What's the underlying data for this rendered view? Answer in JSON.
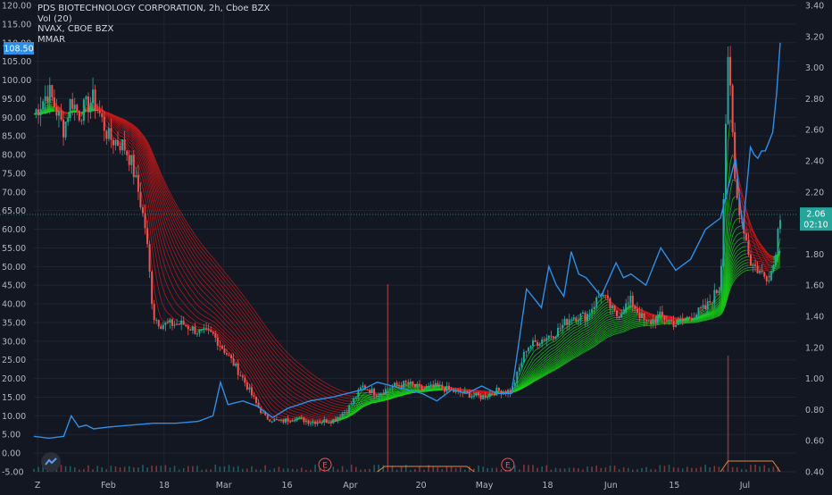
{
  "legend": {
    "title": "PDS BIOTECHNOLOGY CORPORATION, 2h, Cboe BZX",
    "volume": "Vol (20)",
    "compare": "NVAX, CBOE BZX",
    "indicator": "MMAR"
  },
  "colors": {
    "background": "#131722",
    "grid": "#1f2433",
    "nvax_line": "#2e8fe6",
    "up": "#26a69a",
    "down": "#ef5350",
    "ma_up": "#19d219",
    "ma_down": "#cc1a1a",
    "price_badge": "#26a69a",
    "nvax_badge": "#2e8fe6"
  },
  "chart_data": {
    "type": "line",
    "left_axis": {
      "ticks": [
        "120.00",
        "115.00",
        "110.00",
        "105.00",
        "100.00",
        "95.00",
        "90.00",
        "85.00",
        "80.00",
        "75.00",
        "70.00",
        "65.00",
        "60.00",
        "55.00",
        "50.00",
        "45.00",
        "40.00",
        "35.00",
        "30.00",
        "25.00",
        "20.00",
        "15.00",
        "10.00",
        "5.00",
        "0.00",
        "-5.00"
      ],
      "range": [
        -5,
        120
      ]
    },
    "right_axis": {
      "ticks": [
        "3.40",
        "3.20",
        "3.00",
        "2.80",
        "2.60",
        "2.40",
        "2.20",
        "2.00",
        "1.80",
        "1.60",
        "1.40",
        "1.20",
        "1.00",
        "0.80",
        "0.60",
        "0.40"
      ],
      "range": [
        0.4,
        3.4
      ]
    },
    "x_ticks": [
      "Z",
      "Feb",
      "18",
      "Mar",
      "16",
      "Apr",
      "20",
      "May",
      "18",
      "Jun",
      "15",
      "Jul"
    ],
    "earnings_markers": [
      "E",
      "E"
    ],
    "badges": {
      "nvax_last": "108.50",
      "pds_last": "2.06",
      "countdown": "02:10"
    },
    "series": [
      {
        "name": "NVAX, CBOE BZX",
        "axis": "left",
        "x": [
          0,
          0.02,
          0.04,
          0.05,
          0.06,
          0.07,
          0.08,
          0.1,
          0.13,
          0.16,
          0.19,
          0.22,
          0.24,
          0.25,
          0.26,
          0.28,
          0.3,
          0.32,
          0.34,
          0.37,
          0.4,
          0.42,
          0.44,
          0.46,
          0.48,
          0.5,
          0.52,
          0.54,
          0.56,
          0.58,
          0.6,
          0.62,
          0.64,
          0.66,
          0.68,
          0.69,
          0.7,
          0.71,
          0.72,
          0.73,
          0.74,
          0.76,
          0.78,
          0.79,
          0.8,
          0.82,
          0.84,
          0.86,
          0.88,
          0.9,
          0.92,
          0.94,
          0.95,
          0.96,
          0.965,
          0.97,
          0.975,
          0.98,
          0.99,
          0.995,
          1.0
        ],
        "y": [
          4.5,
          4,
          4.5,
          10,
          7,
          7.5,
          6.5,
          7,
          7.5,
          8,
          8,
          8.5,
          10,
          19,
          13,
          14,
          12.5,
          9.5,
          12,
          14,
          15,
          16,
          17,
          19,
          18,
          17,
          16,
          14,
          17,
          16,
          18,
          16,
          16,
          44,
          39,
          50,
          45,
          42,
          54,
          48,
          47,
          42,
          51,
          47,
          48,
          45,
          55,
          49,
          52,
          60,
          63,
          79,
          60,
          82,
          80,
          79,
          81,
          81,
          86,
          96,
          110
        ]
      },
      {
        "name": "PDS",
        "axis": "right",
        "x": [
          0,
          0.02,
          0.04,
          0.05,
          0.06,
          0.08,
          0.1,
          0.12,
          0.13,
          0.14,
          0.15,
          0.16,
          0.17,
          0.18,
          0.2,
          0.22,
          0.24,
          0.26,
          0.28,
          0.3,
          0.31,
          0.33,
          0.35,
          0.37,
          0.4,
          0.42,
          0.44,
          0.46,
          0.48,
          0.5,
          0.52,
          0.54,
          0.56,
          0.58,
          0.6,
          0.62,
          0.64,
          0.66,
          0.68,
          0.7,
          0.72,
          0.74,
          0.76,
          0.78,
          0.8,
          0.82,
          0.84,
          0.86,
          0.88,
          0.9,
          0.92,
          0.93,
          0.94,
          0.95,
          0.96,
          0.97,
          0.98,
          0.99,
          1.0
        ],
        "y": [
          2.7,
          2.85,
          2.6,
          2.8,
          2.7,
          2.8,
          2.55,
          2.5,
          2.4,
          2.2,
          1.95,
          1.4,
          1.35,
          1.35,
          1.35,
          1.3,
          1.28,
          1.15,
          1.0,
          0.82,
          0.75,
          0.72,
          0.75,
          0.72,
          0.73,
          0.8,
          0.95,
          0.9,
          0.95,
          0.97,
          0.93,
          0.95,
          0.92,
          0.9,
          0.88,
          0.92,
          0.92,
          1.2,
          1.25,
          1.3,
          1.4,
          1.4,
          1.55,
          1.4,
          1.5,
          1.35,
          1.4,
          1.35,
          1.4,
          1.45,
          1.6,
          3.1,
          2.2,
          2.0,
          1.75,
          1.7,
          1.65,
          1.7,
          2.06
        ]
      }
    ],
    "volume_note": "Vol (20)"
  }
}
